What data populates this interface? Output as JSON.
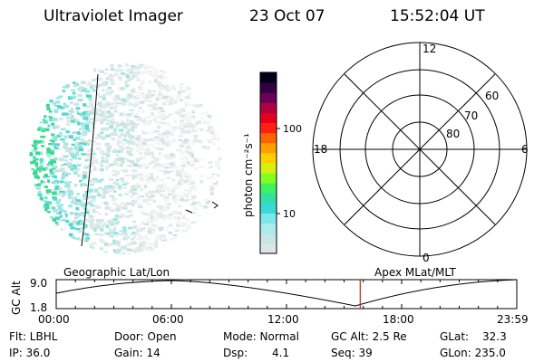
{
  "header": {
    "instrument": "Ultraviolet Imager",
    "date": "23 Oct 07",
    "time": "15:52:04 UT"
  },
  "colorbar": {
    "unit_label": "photon cm⁻²s⁻¹",
    "ticks": [
      {
        "value": "100",
        "frac": 0.69
      },
      {
        "value": "10",
        "frac": 0.22
      }
    ],
    "colors": [
      "#dde6e6",
      "#c8e6e6",
      "#a8ecec",
      "#7ae8e8",
      "#3cd8d8",
      "#30e0a8",
      "#40f060",
      "#80ff20",
      "#d8f010",
      "#ffd000",
      "#ffa000",
      "#ff6400",
      "#ff2010",
      "#e8001a",
      "#b00040",
      "#6a0058",
      "#300040",
      "#000018"
    ]
  },
  "polar_plot": {
    "labels": {
      "top": "12",
      "bottom": "0",
      "left": "18",
      "right": "6"
    },
    "latitude_labels": [
      "60",
      "70",
      "80"
    ]
  },
  "timeline": {
    "left_title": "Geographic Lat/Lon",
    "right_title": "Apex MLat/MLT",
    "y_axis_label": "GC Alt",
    "y_ticks": [
      "9.0",
      "1.8"
    ],
    "x_ticks": [
      "00:00",
      "06:00",
      "12:00",
      "18:00",
      "23:59"
    ],
    "current_time_frac": 0.66
  },
  "info": {
    "filter": "Flt: LBHL",
    "ip": "IP: 36.0",
    "door": "Door: Open",
    "gain": "Gain: 14",
    "mode": "Mode: Normal",
    "dsp_label": "Dsp:",
    "dsp_value": "4.1",
    "gc_alt": "GC Alt: 2.5 Re",
    "seq": "Seq: 39",
    "glat_label": "GLat:",
    "glat_value": "32.3",
    "glon": "GLon: 235.0"
  }
}
